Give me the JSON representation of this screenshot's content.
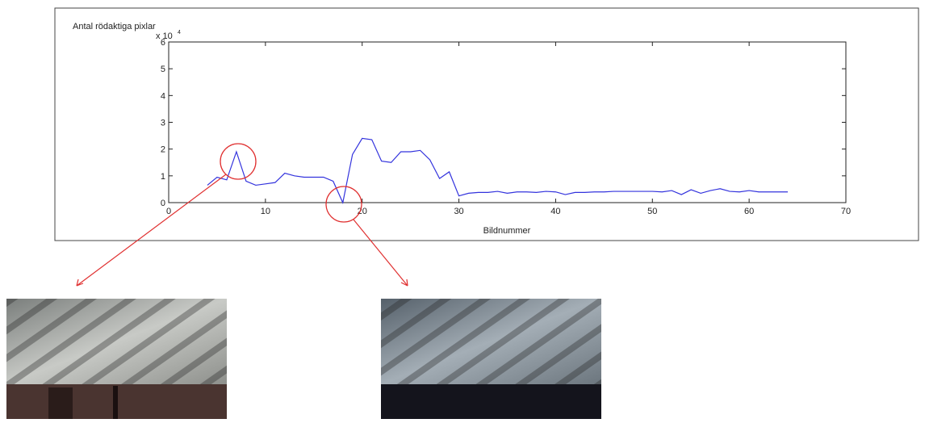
{
  "chart_data": {
    "type": "line",
    "title": "Antal rödaktiga pixlar",
    "x_label": "Bildnummer",
    "y_multiplier": {
      "base": "x 10",
      "exponent": "4"
    },
    "xlim": [
      0,
      70
    ],
    "xticks": [
      0,
      10,
      20,
      30,
      40,
      50,
      60,
      70
    ],
    "ylim": [
      0,
      6
    ],
    "yticks": [
      0,
      1,
      2,
      3,
      4,
      5,
      6
    ],
    "grid": false,
    "x": [
      4,
      5,
      6,
      7,
      8,
      9,
      10,
      11,
      12,
      13,
      14,
      15,
      16,
      17,
      18,
      19,
      20,
      21,
      22,
      23,
      24,
      25,
      26,
      27,
      28,
      29,
      30,
      31,
      32,
      33,
      34,
      35,
      36,
      37,
      38,
      39,
      40,
      41,
      42,
      43,
      44,
      45,
      46,
      47,
      48,
      49,
      50,
      51,
      52,
      53,
      54,
      55,
      56,
      57,
      58,
      59,
      60,
      61,
      62,
      63,
      64
    ],
    "series": [
      {
        "name": "Antal rödaktiga pixlar",
        "color": "#3333dd",
        "values": [
          0.65,
          0.95,
          0.85,
          1.9,
          0.8,
          0.65,
          0.7,
          0.75,
          1.1,
          1.0,
          0.95,
          0.95,
          0.95,
          0.8,
          0.0,
          1.8,
          2.4,
          2.35,
          1.55,
          1.5,
          1.9,
          1.9,
          1.95,
          1.6,
          0.9,
          1.15,
          0.25,
          0.35,
          0.38,
          0.38,
          0.42,
          0.35,
          0.4,
          0.4,
          0.38,
          0.42,
          0.4,
          0.3,
          0.38,
          0.38,
          0.4,
          0.4,
          0.42,
          0.42,
          0.42,
          0.42,
          0.42,
          0.4,
          0.45,
          0.3,
          0.48,
          0.35,
          0.45,
          0.52,
          0.42,
          0.4,
          0.45,
          0.4,
          0.4,
          0.4,
          0.4
        ]
      }
    ]
  }
}
